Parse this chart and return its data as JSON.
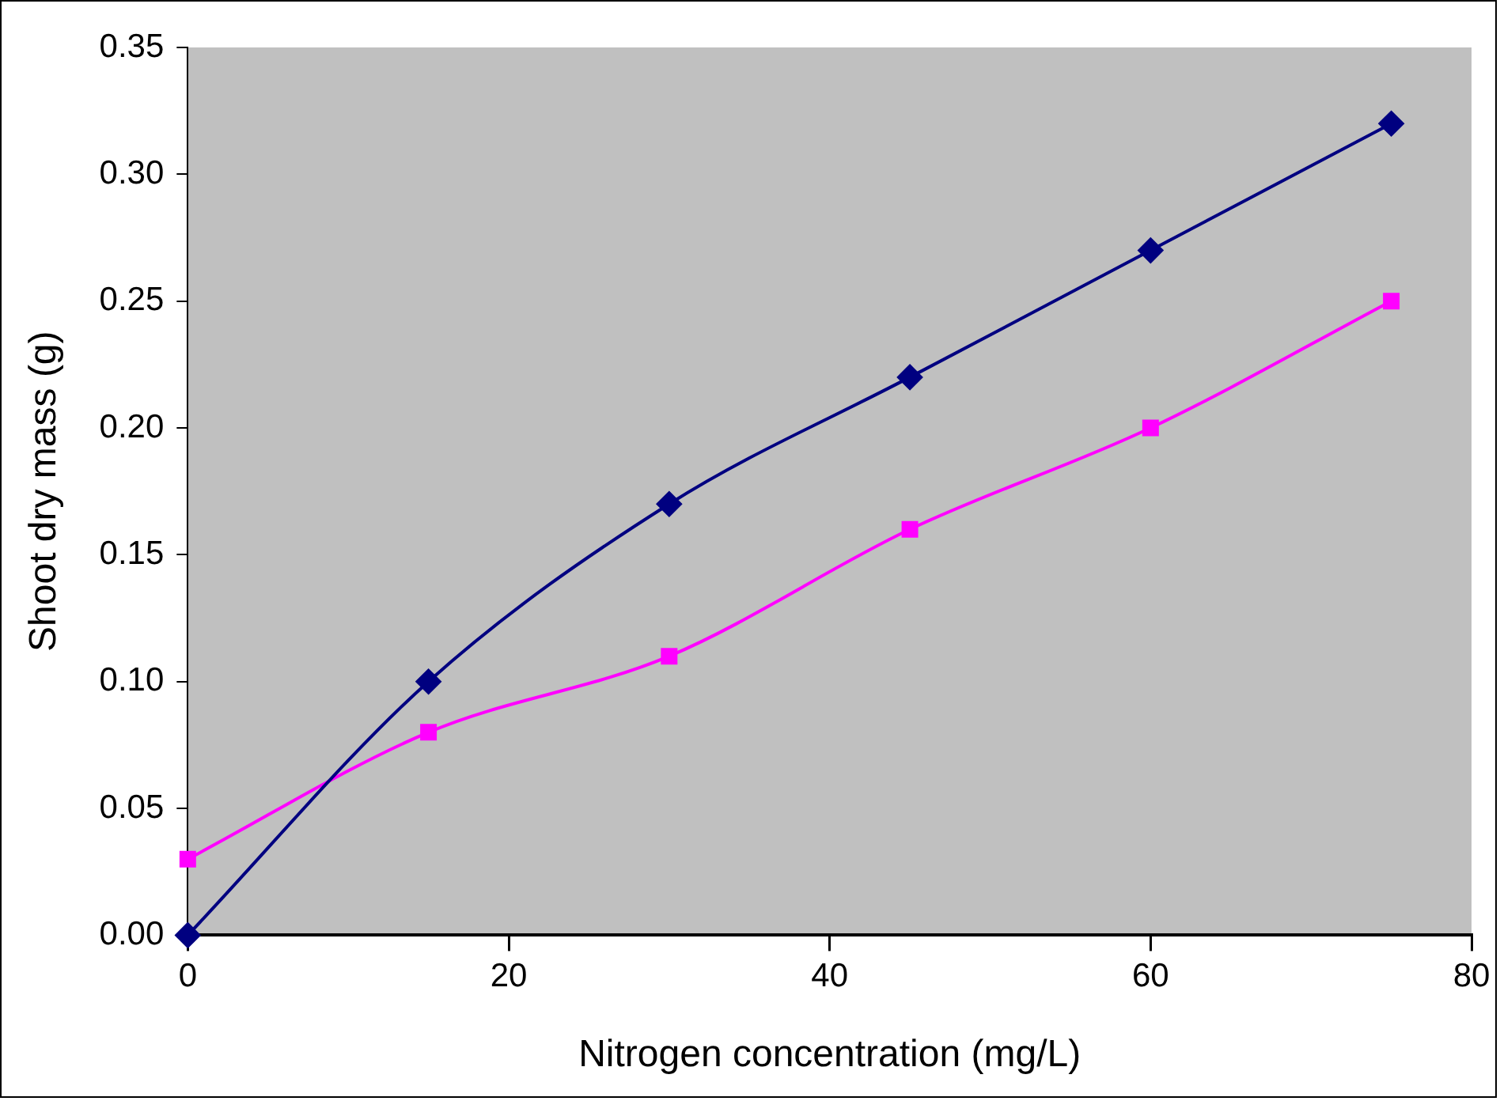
{
  "chart_data": {
    "type": "line",
    "xlabel": "Nitrogen concentration (mg/L)",
    "ylabel": "Shoot dry mass (g)",
    "xlim": [
      0,
      80
    ],
    "xticks": [
      0,
      20,
      40,
      60,
      80
    ],
    "ylim": [
      0,
      0.35
    ],
    "yticks": [
      {
        "value": 0,
        "label": "0.00"
      },
      {
        "value": 0.05,
        "label": "0.05"
      },
      {
        "value": 0.1,
        "label": "0.10"
      },
      {
        "value": 0.15,
        "label": "0.15"
      },
      {
        "value": 0.2,
        "label": "0.20"
      },
      {
        "value": 0.25,
        "label": "0.25"
      },
      {
        "value": 0.3,
        "label": "0.30"
      },
      {
        "value": 0.35,
        "label": "0.35"
      }
    ],
    "grid": false,
    "legend": false,
    "series": [
      {
        "color": "#000080",
        "marker": "diamond",
        "x": [
          0,
          15,
          30,
          45,
          60,
          75
        ],
        "values": [
          0,
          0.1,
          0.17,
          0.22,
          0.27,
          0.32
        ]
      },
      {
        "color": "#ff00ff",
        "marker": "square",
        "x": [
          0,
          15,
          30,
          45,
          60,
          75
        ],
        "values": [
          0.03,
          0.08,
          0.11,
          0.16,
          0.2,
          0.25
        ]
      }
    ]
  }
}
